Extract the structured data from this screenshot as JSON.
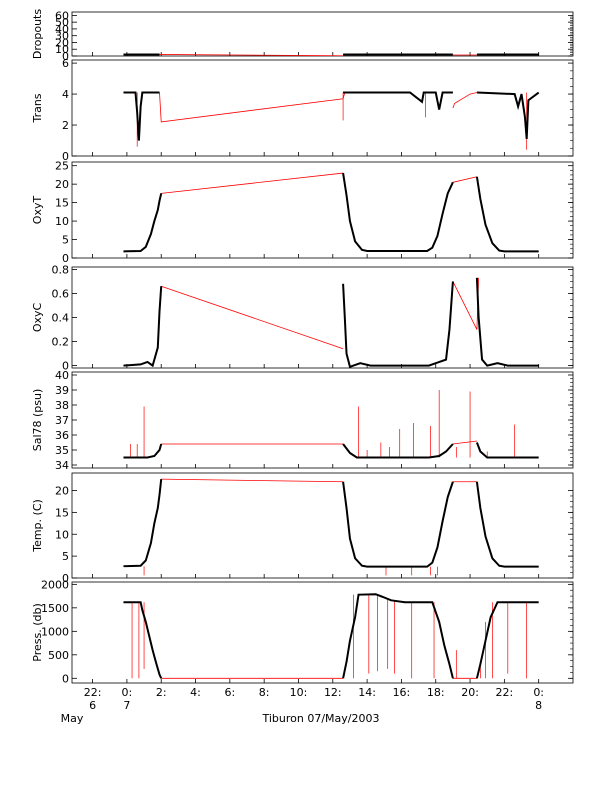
{
  "chart_data": {
    "type": "line",
    "title": "Tiburon 07/May/2003",
    "x_axis": {
      "ticks": [
        {
          "hour": -2,
          "label": "22:",
          "sub": "6"
        },
        {
          "hour": 0,
          "label": "0:",
          "sub": "7"
        },
        {
          "hour": 2,
          "label": "2:",
          "sub": ""
        },
        {
          "hour": 4,
          "label": "4:",
          "sub": ""
        },
        {
          "hour": 6,
          "label": "6:",
          "sub": ""
        },
        {
          "hour": 8,
          "label": "8:",
          "sub": ""
        },
        {
          "hour": 10,
          "label": "10:",
          "sub": ""
        },
        {
          "hour": 12,
          "label": "12:",
          "sub": ""
        },
        {
          "hour": 14,
          "label": "14:",
          "sub": ""
        },
        {
          "hour": 16,
          "label": "16:",
          "sub": ""
        },
        {
          "hour": 18,
          "label": "18:",
          "sub": ""
        },
        {
          "hour": 20,
          "label": "20:",
          "sub": ""
        },
        {
          "hour": 22,
          "label": "22:",
          "sub": ""
        },
        {
          "hour": 24,
          "label": "0:",
          "sub": "8"
        }
      ],
      "month_label": "May",
      "range": [
        -3.2,
        26.0
      ]
    },
    "panels": [
      {
        "ylabel": "Dropouts",
        "ylim": [
          0,
          65
        ],
        "ticks": [
          0,
          10,
          20,
          30,
          40,
          50,
          60
        ],
        "black": [
          [
            [
              -0.2,
              2.3
            ],
            [
              1.9,
              2.3
            ]
          ],
          [
            [
              12.6,
              2.3
            ],
            [
              19.0,
              2.3
            ]
          ],
          [
            [
              20.4,
              2.3
            ],
            [
              24.0,
              2.3
            ]
          ]
        ],
        "red": [
          [
            [
              1.9,
              2.3
            ],
            [
              12.6,
              0.3
            ]
          ],
          [
            [
              19.0,
              1.5
            ],
            [
              20.4,
              1.5
            ]
          ]
        ],
        "red_spikes": []
      },
      {
        "ylabel": "Trans",
        "ylim": [
          0,
          6.2
        ],
        "ticks": [
          0,
          2,
          4,
          6
        ],
        "black": [
          [
            [
              -0.2,
              4.1
            ],
            [
              0.5,
              4.1
            ],
            [
              0.6,
              2.8
            ],
            [
              0.7,
              1.0
            ],
            [
              0.8,
              3.2
            ],
            [
              0.9,
              4.1
            ],
            [
              1.9,
              4.1
            ]
          ],
          [
            [
              12.6,
              4.1
            ],
            [
              16.5,
              4.1
            ],
            [
              17.2,
              3.5
            ],
            [
              17.3,
              4.1
            ],
            [
              18.0,
              4.1
            ],
            [
              18.2,
              3.0
            ],
            [
              18.4,
              4.1
            ],
            [
              19.0,
              4.1
            ]
          ],
          [
            [
              20.4,
              4.1
            ],
            [
              22.6,
              4.0
            ],
            [
              22.8,
              3.2
            ],
            [
              23.0,
              4.0
            ],
            [
              23.2,
              2.5
            ],
            [
              23.3,
              1.1
            ],
            [
              23.4,
              3.6
            ],
            [
              24.0,
              4.1
            ]
          ]
        ],
        "red": [
          [
            [
              1.9,
              4.1
            ],
            [
              2.0,
              2.2
            ],
            [
              12.6,
              3.7
            ],
            [
              12.7,
              4.1
            ]
          ],
          [
            [
              19.0,
              3.1
            ],
            [
              19.1,
              3.4
            ],
            [
              20.0,
              4.0
            ],
            [
              20.4,
              4.1
            ]
          ]
        ],
        "red_spikes": [
          [
            0.6,
            4.1,
            0.6
          ],
          [
            23.3,
            4.1,
            0.4
          ],
          [
            17.4,
            4.1,
            2.5
          ],
          [
            12.6,
            4.1,
            2.3
          ]
        ]
      },
      {
        "ylabel": "OxyT",
        "ylim": [
          0,
          26
        ],
        "ticks": [
          0,
          5,
          10,
          15,
          20,
          25
        ],
        "black": [
          [
            [
              -0.2,
              1.8
            ],
            [
              0.8,
              1.9
            ],
            [
              1.1,
              3.0
            ],
            [
              1.4,
              6.5
            ],
            [
              1.6,
              10.0
            ],
            [
              1.8,
              13.0
            ],
            [
              1.9,
              15.5
            ],
            [
              2.0,
              17.5
            ]
          ],
          [
            [
              12.6,
              23.0
            ],
            [
              12.8,
              17.0
            ],
            [
              13.0,
              10.0
            ],
            [
              13.3,
              4.5
            ],
            [
              13.7,
              2.2
            ],
            [
              14.0,
              1.9
            ],
            [
              17.5,
              1.9
            ],
            [
              17.8,
              2.8
            ],
            [
              18.1,
              6.0
            ],
            [
              18.4,
              12.0
            ],
            [
              18.7,
              17.5
            ],
            [
              19.0,
              20.5
            ]
          ],
          [
            [
              20.4,
              22.0
            ],
            [
              20.6,
              16.0
            ],
            [
              20.9,
              9.0
            ],
            [
              21.3,
              4.0
            ],
            [
              21.7,
              2.0
            ],
            [
              22.0,
              1.8
            ],
            [
              24.0,
              1.8
            ]
          ]
        ],
        "red": [
          [
            [
              2.0,
              17.5
            ],
            [
              12.6,
              23.0
            ]
          ],
          [
            [
              19.0,
              20.5
            ],
            [
              20.4,
              22.0
            ]
          ]
        ],
        "red_spikes": []
      },
      {
        "ylabel": "OxyC",
        "ylim": [
          -0.02,
          0.82
        ],
        "ticks": [
          0.0,
          0.2,
          0.4,
          0.6,
          0.8
        ],
        "black": [
          [
            [
              -0.2,
              0.0
            ],
            [
              0.8,
              0.01
            ],
            [
              1.2,
              0.03
            ],
            [
              1.5,
              0.0
            ],
            [
              1.8,
              0.15
            ],
            [
              1.9,
              0.45
            ],
            [
              2.0,
              0.66
            ]
          ],
          [
            [
              12.6,
              0.68
            ],
            [
              12.7,
              0.4
            ],
            [
              12.8,
              0.1
            ],
            [
              13.0,
              -0.01
            ],
            [
              13.6,
              0.02
            ],
            [
              14.2,
              0.0
            ],
            [
              17.6,
              0.0
            ],
            [
              18.0,
              0.02
            ],
            [
              18.6,
              0.05
            ],
            [
              18.8,
              0.3
            ],
            [
              19.0,
              0.7
            ]
          ],
          [
            [
              20.4,
              0.73
            ],
            [
              20.5,
              0.4
            ],
            [
              20.7,
              0.05
            ],
            [
              21.0,
              0.0
            ],
            [
              21.6,
              0.02
            ],
            [
              22.2,
              0.0
            ],
            [
              24.0,
              0.0
            ]
          ]
        ],
        "red": [
          [
            [
              2.0,
              0.66
            ],
            [
              12.6,
              0.14
            ]
          ],
          [
            [
              19.0,
              0.7
            ],
            [
              20.4,
              0.3
            ],
            [
              20.5,
              0.73
            ]
          ]
        ],
        "red_spikes": []
      },
      {
        "ylabel": "Sal78 (psu)",
        "ylim": [
          33.8,
          40.2
        ],
        "ticks": [
          34,
          35,
          36,
          37,
          38,
          39,
          40
        ],
        "black": [
          [
            [
              -0.2,
              34.5
            ],
            [
              1.2,
              34.5
            ],
            [
              1.6,
              34.6
            ],
            [
              1.9,
              35.0
            ],
            [
              2.0,
              35.4
            ]
          ],
          [
            [
              12.6,
              35.4
            ],
            [
              13.0,
              34.8
            ],
            [
              13.4,
              34.5
            ],
            [
              17.6,
              34.5
            ],
            [
              18.2,
              34.6
            ],
            [
              18.6,
              34.9
            ],
            [
              19.0,
              35.4
            ]
          ],
          [
            [
              20.4,
              35.5
            ],
            [
              20.6,
              34.9
            ],
            [
              21.0,
              34.5
            ],
            [
              24.0,
              34.5
            ]
          ]
        ],
        "red": [
          [
            [
              2.0,
              35.4
            ],
            [
              12.6,
              35.4
            ]
          ],
          [
            [
              19.0,
              35.4
            ],
            [
              20.4,
              35.6
            ]
          ]
        ],
        "red_spikes": [
          [
            0.2,
            34.5,
            35.4
          ],
          [
            0.6,
            34.5,
            35.4
          ],
          [
            1.0,
            34.5,
            37.9
          ],
          [
            13.5,
            34.5,
            37.9
          ],
          [
            14.0,
            34.5,
            35.0
          ],
          [
            14.8,
            34.5,
            35.5
          ],
          [
            15.3,
            34.5,
            35.2
          ],
          [
            15.9,
            34.5,
            36.4
          ],
          [
            16.7,
            34.5,
            36.8
          ],
          [
            17.7,
            34.5,
            36.6
          ],
          [
            18.2,
            34.5,
            39.0
          ],
          [
            19.2,
            34.5,
            35.2
          ],
          [
            20.0,
            34.5,
            38.9
          ],
          [
            21.0,
            34.5,
            34.9
          ],
          [
            22.6,
            34.5,
            36.7
          ]
        ]
      },
      {
        "ylabel": "Temp. (C)",
        "ylim": [
          0,
          24
        ],
        "ticks": [
          0,
          5,
          10,
          15,
          20
        ],
        "black": [
          [
            [
              -0.2,
              2.7
            ],
            [
              0.8,
              2.8
            ],
            [
              1.1,
              4.0
            ],
            [
              1.4,
              8.0
            ],
            [
              1.6,
              12.5
            ],
            [
              1.8,
              16.0
            ],
            [
              1.9,
              19.0
            ],
            [
              2.0,
              22.6
            ]
          ],
          [
            [
              12.6,
              22.0
            ],
            [
              12.8,
              16.0
            ],
            [
              13.0,
              9.0
            ],
            [
              13.3,
              4.5
            ],
            [
              13.7,
              2.8
            ],
            [
              14.0,
              2.6
            ],
            [
              17.5,
              2.6
            ],
            [
              17.8,
              3.5
            ],
            [
              18.1,
              7.0
            ],
            [
              18.4,
              13.0
            ],
            [
              18.7,
              18.5
            ],
            [
              19.0,
              22.0
            ]
          ],
          [
            [
              20.4,
              22.0
            ],
            [
              20.6,
              16.0
            ],
            [
              20.9,
              9.5
            ],
            [
              21.3,
              4.5
            ],
            [
              21.7,
              2.8
            ],
            [
              22.0,
              2.6
            ],
            [
              24.0,
              2.6
            ]
          ]
        ],
        "red": [
          [
            [
              2.0,
              22.6
            ],
            [
              12.6,
              22.0
            ]
          ],
          [
            [
              19.0,
              22.0
            ],
            [
              20.4,
              22.0
            ]
          ]
        ],
        "red_spikes": [
          [
            1.0,
            2.7,
            0.6
          ],
          [
            15.1,
            2.6,
            0.6
          ],
          [
            16.6,
            2.6,
            0.6
          ],
          [
            17.7,
            2.6,
            0.6
          ],
          [
            18.1,
            2.6,
            0.6
          ]
        ]
      },
      {
        "ylabel": "Press. (db)",
        "ylim": [
          -100,
          2050
        ],
        "ticks": [
          0,
          500,
          1000,
          1500,
          2000
        ],
        "black": [
          [
            [
              -0.2,
              1620
            ],
            [
              0.8,
              1620
            ],
            [
              0.9,
              1450
            ],
            [
              1.1,
              1200
            ],
            [
              1.3,
              900
            ],
            [
              1.5,
              600
            ],
            [
              1.7,
              330
            ],
            [
              1.9,
              80
            ],
            [
              2.0,
              0
            ]
          ],
          [
            [
              12.6,
              0
            ],
            [
              12.8,
              350
            ],
            [
              13.0,
              800
            ],
            [
              13.3,
              1300
            ],
            [
              13.5,
              1780
            ],
            [
              14.5,
              1790
            ],
            [
              15.0,
              1720
            ],
            [
              15.4,
              1660
            ],
            [
              16.2,
              1620
            ],
            [
              17.8,
              1620
            ],
            [
              18.2,
              1200
            ],
            [
              18.5,
              700
            ],
            [
              18.8,
              300
            ],
            [
              19.0,
              0
            ]
          ],
          [
            [
              20.4,
              0
            ],
            [
              20.6,
              300
            ],
            [
              20.9,
              800
            ],
            [
              21.2,
              1300
            ],
            [
              21.6,
              1620
            ],
            [
              24.0,
              1620
            ]
          ]
        ],
        "red": [
          [
            [
              2.0,
              0
            ],
            [
              12.6,
              0
            ]
          ],
          [
            [
              19.0,
              0
            ],
            [
              20.4,
              0
            ]
          ]
        ],
        "red_spikes": [
          [
            0.3,
            1620,
            0
          ],
          [
            0.7,
            1620,
            0
          ],
          [
            1.0,
            1620,
            200
          ],
          [
            13.2,
            1780,
            0
          ],
          [
            14.1,
            1780,
            100
          ],
          [
            14.6,
            1790,
            150
          ],
          [
            15.2,
            1700,
            200
          ],
          [
            15.6,
            1640,
            100
          ],
          [
            16.6,
            1620,
            0
          ],
          [
            17.9,
            1620,
            0
          ],
          [
            19.2,
            0,
            600
          ],
          [
            20.6,
            300,
            0
          ],
          [
            20.9,
            1200,
            0
          ],
          [
            21.3,
            1620,
            0
          ],
          [
            22.2,
            1620,
            100
          ],
          [
            23.3,
            1620,
            0
          ]
        ]
      }
    ],
    "colors": {
      "data": "#000000",
      "interp": "#ff0000"
    }
  }
}
